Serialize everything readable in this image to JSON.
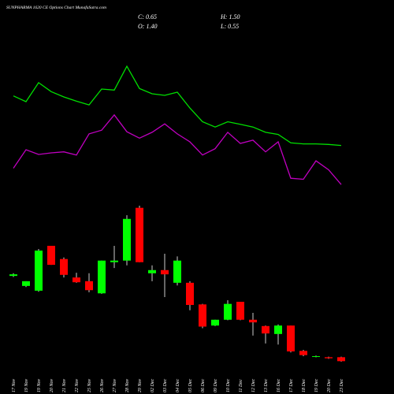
{
  "chart_data": {
    "type": "candlestick",
    "title": "SUNPHARMA 1620 CE Options Chart MunafaSutra.com",
    "close_label": "C: 0.65",
    "high_label": "H: 1.50",
    "open_label": "O: 1.40",
    "low_label": "L: 0.55",
    "categories": [
      "17 Nov",
      "19 Nov",
      "19 Nov",
      "20 Nov",
      "21 Nov",
      "22 Nov",
      "25 Nov",
      "26 Nov",
      "27 Nov",
      "28 Nov",
      "29 Nov",
      "02 Dec",
      "03 Dec",
      "04 Dec",
      "05 Dec",
      "06 Dec",
      "09 Dec",
      "10 Dec",
      "11 Dec",
      "12 Dec",
      "13 Dec",
      "16 Dec",
      "17 Dec",
      "18 Dec",
      "19 Dec",
      "20 Dec",
      "23 Dec"
    ],
    "open": [
      16.8,
      14.9,
      14.0,
      22.5,
      20.0,
      16.5,
      15.8,
      13.5,
      19.4,
      19.7,
      29.7,
      17.3,
      17.9,
      15.5,
      15.5,
      11.4,
      7.4,
      8.5,
      11.9,
      8.5,
      7.3,
      5.8,
      7.4,
      2.6,
      1.5,
      1.4,
      1.4
    ],
    "high": [
      17.3,
      15.8,
      21.9,
      22.5,
      20.3,
      17.4,
      17.3,
      19.7,
      22.5,
      28.3,
      30.1,
      18.8,
      21.0,
      20.5,
      15.8,
      11.5,
      8.5,
      12.2,
      11.9,
      9.8,
      7.4,
      7.6,
      7.4,
      2.8,
      1.7,
      1.5,
      1.5
    ],
    "low": [
      16.6,
      14.7,
      13.8,
      18.9,
      16.5,
      15.5,
      13.7,
      13.4,
      18.3,
      18.8,
      19.4,
      15.8,
      12.8,
      15.0,
      10.3,
      6.9,
      7.3,
      8.4,
      8.4,
      5.5,
      4.0,
      3.8,
      2.3,
      1.6,
      1.4,
      1.1,
      0.55
    ],
    "close": [
      17.1,
      15.8,
      21.6,
      18.9,
      17.0,
      15.6,
      14.1,
      19.7,
      19.7,
      27.6,
      19.4,
      17.9,
      17.1,
      19.7,
      11.3,
      7.2,
      8.5,
      11.5,
      8.5,
      8.0,
      5.9,
      7.4,
      2.5,
      1.8,
      1.6,
      1.2,
      0.65
    ],
    "up_color": "#00ff00",
    "down_color": "#ff0000",
    "lines": [
      {
        "color": "#00e000",
        "values": [
          50.9,
          49.8,
          53.4,
          51.7,
          50.7,
          49.9,
          49.2,
          52.2,
          52.0,
          56.5,
          52.3,
          51.3,
          51.0,
          51.6,
          48.6,
          46.0,
          45.0,
          46.0,
          45.5,
          45.0,
          44.0,
          43.6,
          42.0,
          41.8,
          41.8,
          41.7,
          41.5
        ]
      },
      {
        "color": "#c000c0",
        "values": [
          37.2,
          40.7,
          39.8,
          40.1,
          40.3,
          39.7,
          43.7,
          44.4,
          47.3,
          44.1,
          42.9,
          44.0,
          45.6,
          43.7,
          42.2,
          39.7,
          40.9,
          44.0,
          41.9,
          42.5,
          40.3,
          42.2,
          35.3,
          35.1,
          38.6,
          36.9,
          34.1
        ]
      }
    ],
    "ylim": [
      0,
      69
    ]
  }
}
